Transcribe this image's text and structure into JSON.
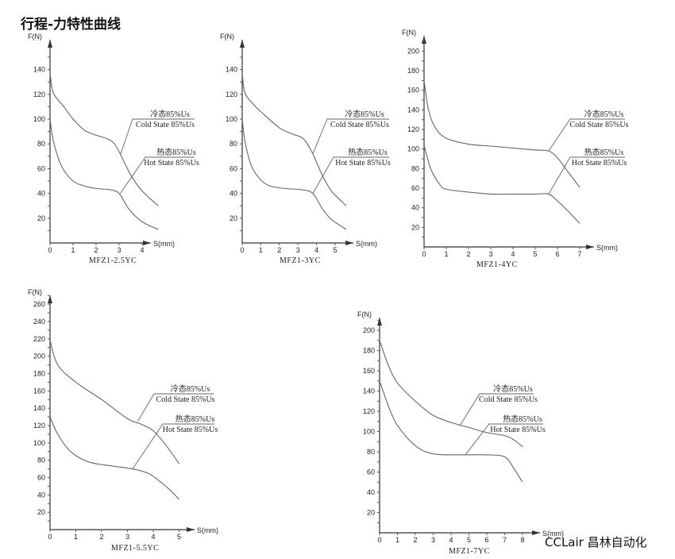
{
  "title": "行程-力特性曲线",
  "watermark": "CCLair 昌林自动化",
  "chart_data": [
    {
      "type": "line",
      "model": "MFZ1-2.5YC",
      "ylabel": "F(N)",
      "xlabel": "S(mm)",
      "xticks": [
        0,
        1,
        2,
        3,
        4
      ],
      "yticks": [
        20,
        40,
        60,
        80,
        100,
        120,
        140
      ],
      "ylim": [
        0,
        150
      ],
      "xlim": [
        0,
        4.7
      ],
      "series": [
        {
          "name": "冷态85%Us / Cold State 85%Us",
          "label_cn": "冷态85%Us",
          "label_en": "Cold State 85%Us",
          "x": [
            0,
            0.15,
            0.6,
            1,
            1.5,
            2,
            2.5,
            2.8,
            3.1,
            3.5,
            4,
            4.7
          ],
          "y": [
            137,
            121,
            110,
            100,
            91,
            87,
            84,
            80,
            70,
            55,
            42,
            30
          ]
        },
        {
          "name": "热态85%Us / Hot State 85%Us",
          "label_cn": "热态85%Us",
          "label_en": "Hot State 85%Us",
          "x": [
            0,
            0.15,
            0.5,
            1,
            1.5,
            2,
            2.6,
            3,
            3.4,
            3.8,
            4.2,
            4.7
          ],
          "y": [
            100,
            82,
            62,
            50,
            46,
            44,
            43,
            40,
            28,
            20,
            15,
            11
          ]
        }
      ]
    },
    {
      "type": "line",
      "model": "MFZ1-3YC",
      "ylabel": "F(N)",
      "xlabel": "S(mm)",
      "xticks": [
        0,
        1,
        2,
        3,
        4,
        5
      ],
      "yticks": [
        20,
        40,
        60,
        80,
        100,
        120,
        140
      ],
      "ylim": [
        0,
        150
      ],
      "xlim": [
        0,
        5.7
      ],
      "series": [
        {
          "name": "冷态85%Us / Cold State 85%Us",
          "label_cn": "冷态85%Us",
          "label_en": "Cold State 85%Us",
          "x": [
            0,
            0.15,
            0.6,
            1,
            2,
            2.7,
            3.3,
            3.8,
            4.3,
            4.8,
            5.6
          ],
          "y": [
            137,
            121,
            112,
            106,
            93,
            88,
            84,
            72,
            55,
            42,
            30
          ]
        },
        {
          "name": "热态85%Us / Hot State 85%Us",
          "label_cn": "热态85%Us",
          "label_en": "Hot State 85%Us",
          "x": [
            0,
            0.15,
            0.5,
            1,
            1.5,
            2.3,
            3.2,
            3.8,
            4.3,
            4.8,
            5.6
          ],
          "y": [
            100,
            82,
            62,
            51,
            46,
            44,
            43,
            40,
            28,
            19,
            11
          ]
        }
      ]
    },
    {
      "type": "line",
      "model": "MFZ1-4YC",
      "ylabel": "F(N)",
      "xlabel": "S(mm)",
      "xticks": [
        0,
        1,
        2,
        3,
        4,
        5,
        6,
        7
      ],
      "yticks": [
        20,
        40,
        60,
        80,
        100,
        120,
        140,
        160,
        180,
        200
      ],
      "ylim": [
        0,
        210
      ],
      "xlim": [
        0,
        7
      ],
      "series": [
        {
          "name": "冷态85%Us / Cold State 85%Us",
          "label_cn": "冷态85%Us",
          "label_en": "Cold State 85%Us",
          "x": [
            0,
            0.2,
            0.5,
            1,
            2,
            3,
            4,
            5,
            5.6,
            6,
            6.5,
            7
          ],
          "y": [
            170,
            140,
            122,
            111,
            105,
            103,
            101,
            99,
            98,
            91,
            76,
            61
          ]
        },
        {
          "name": "热态85%Us / Hot State 85%Us",
          "label_cn": "热态85%Us",
          "label_en": "Hot State 85%Us",
          "x": [
            0,
            0.3,
            0.7,
            1,
            2,
            3,
            4,
            5,
            5.6,
            6,
            6.5,
            7
          ],
          "y": [
            104,
            80,
            64,
            59,
            56,
            54,
            54,
            54,
            54,
            47,
            36,
            24
          ]
        }
      ]
    },
    {
      "type": "line",
      "model": "MFZ1-5.5YC",
      "ylabel": "F(N)",
      "xlabel": "S(mm)",
      "xticks": [
        0,
        1,
        2,
        3,
        4,
        5
      ],
      "yticks": [
        20,
        40,
        60,
        80,
        100,
        120,
        140,
        160,
        180,
        200,
        220,
        240,
        260
      ],
      "ylim": [
        0,
        270
      ],
      "xlim": [
        0,
        5.5
      ],
      "series": [
        {
          "name": "冷态85%Us / Cold State 85%Us",
          "label_cn": "冷态85%Us",
          "label_en": "Cold State 85%Us",
          "x": [
            0,
            0.3,
            1,
            2,
            3,
            3.5,
            4,
            4.5,
            5
          ],
          "y": [
            218,
            190,
            170,
            150,
            128,
            122,
            114,
            97,
            76
          ]
        },
        {
          "name": "热态85%Us / Hot State 85%Us",
          "label_cn": "热态85%Us",
          "label_en": "Hot State 85%Us",
          "x": [
            0,
            0.3,
            0.8,
            1.5,
            2.5,
            3.2,
            3.8,
            4.2,
            4.6,
            5
          ],
          "y": [
            130,
            110,
            90,
            78,
            73,
            70,
            65,
            57,
            47,
            35
          ]
        }
      ]
    },
    {
      "type": "line",
      "model": "MFZ1-7YC",
      "ylabel": "F(N)",
      "xlabel": "S(mm)",
      "xticks": [
        0,
        1,
        2,
        3,
        4,
        5,
        6,
        7,
        8
      ],
      "yticks": [
        20,
        40,
        60,
        80,
        100,
        120,
        140,
        160,
        180,
        200
      ],
      "ylim": [
        0,
        210
      ],
      "xlim": [
        0,
        8
      ],
      "series": [
        {
          "name": "冷态85%Us / Cold State 85%Us",
          "label_cn": "冷态85%Us",
          "label_en": "Cold State 85%Us",
          "x": [
            0,
            0.5,
            1,
            2,
            3,
            4,
            5,
            6,
            7,
            7.5,
            8
          ],
          "y": [
            190,
            165,
            148,
            130,
            116,
            109,
            104,
            99,
            96,
            92,
            85
          ]
        },
        {
          "name": "热态85%Us / Hot State 85%Us",
          "label_cn": "热态85%Us",
          "label_en": "Hot State 85%Us",
          "x": [
            0,
            0.5,
            1,
            2,
            3,
            4.5,
            6,
            7,
            7.5,
            8
          ],
          "y": [
            150,
            125,
            106,
            86,
            78,
            77,
            77,
            75,
            64,
            50
          ]
        }
      ]
    }
  ]
}
